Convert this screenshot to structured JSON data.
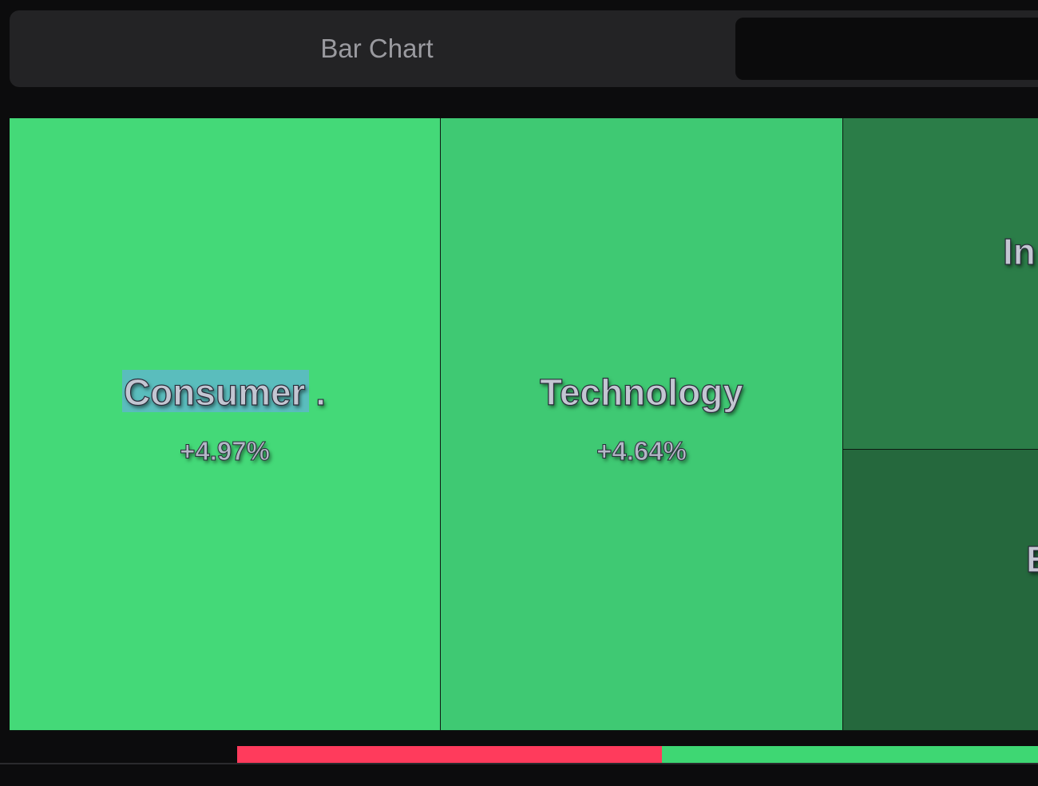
{
  "tabs": [
    {
      "label": "Bar Chart",
      "active": false
    },
    {
      "label": "",
      "active": true
    }
  ],
  "treemap": {
    "tiles": [
      {
        "name": "Consumer .",
        "change": "+4.97%",
        "color": "#44d978",
        "selected": true
      },
      {
        "name": "Technology",
        "change": "+4.64%",
        "color": "#3fc973"
      },
      {
        "name": "In",
        "change": "",
        "color": "#2b7d48"
      },
      {
        "name": "E",
        "change": "",
        "color": "#25683d"
      }
    ]
  },
  "breadth_bar": {
    "decline_color": "#ff3b5c",
    "advance_color": "#3ed773",
    "decline_fraction": 0.53
  }
}
